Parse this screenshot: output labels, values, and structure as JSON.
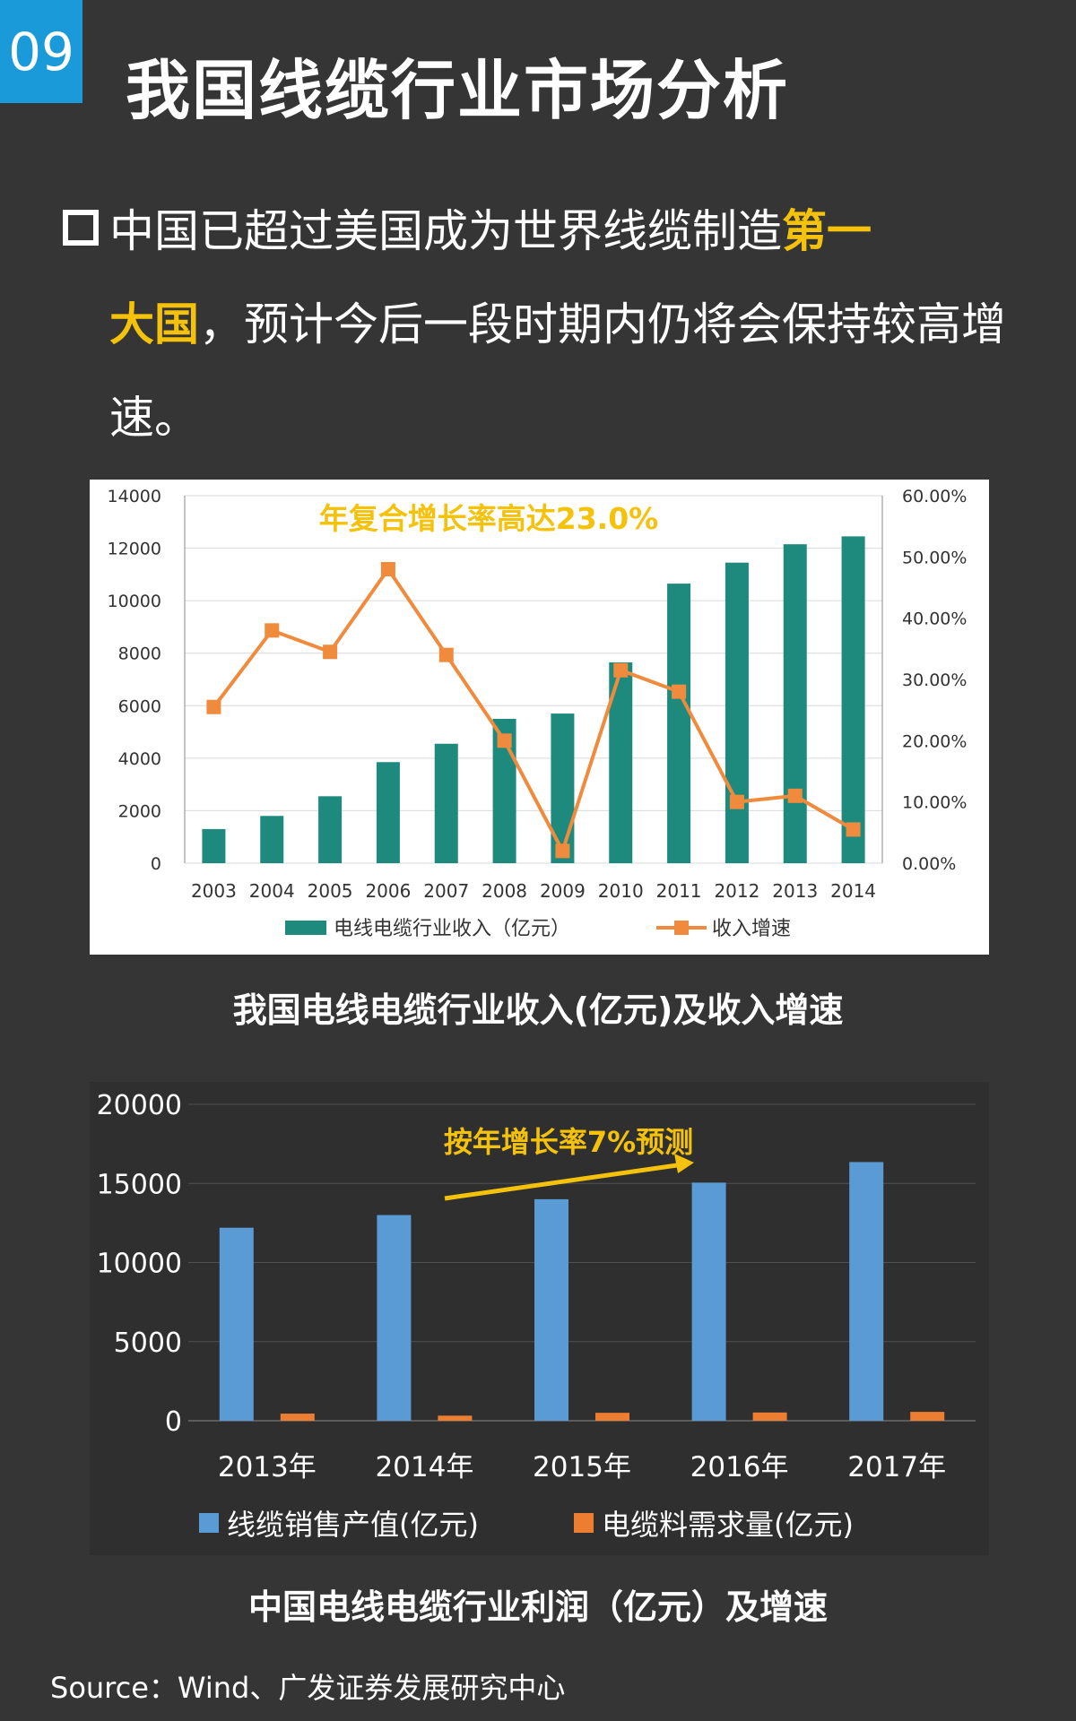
{
  "header": {
    "badge": "09",
    "title": "我国线缆行业市场分析"
  },
  "intro": {
    "part1": "中国已超过美国成为世界线缆制造",
    "highlight1": "第一",
    "highlight2": "大国",
    "part2": "，预计今后一段时期内仍将会保持较高增速。"
  },
  "captions": {
    "chart1": "我国电线电缆行业收入(亿元)及收入增速",
    "chart2": "中国电线电缆行业利润（亿元）及增速"
  },
  "source": "Source：Wind、广发证券发展研究中心",
  "colors": {
    "accent": "#f4c10b",
    "teal": "#1e8a7d",
    "orange": "#f08a3c",
    "blue": "#5b9bd5",
    "orange2": "#ed7d31"
  },
  "chart_data": [
    {
      "type": "bar",
      "categories": [
        "2003",
        "2004",
        "2005",
        "2006",
        "2007",
        "2008",
        "2009",
        "2010",
        "2011",
        "2012",
        "2013",
        "2014"
      ],
      "series": [
        {
          "name": "电线电缆行业收入（亿元）",
          "type": "bar",
          "axis": "left",
          "values": [
            1300,
            1800,
            2550,
            3850,
            4550,
            5500,
            5700,
            7650,
            10650,
            11450,
            12150,
            12450
          ]
        },
        {
          "name": "收入增速",
          "type": "line",
          "axis": "right",
          "values": [
            25.5,
            38.0,
            34.5,
            48.0,
            34.0,
            20.0,
            2.0,
            31.5,
            28.0,
            10.0,
            11.0,
            5.5
          ]
        }
      ],
      "ylim": [
        0,
        14000
      ],
      "yticks": [
        "0",
        "2000",
        "4000",
        "6000",
        "8000",
        "10000",
        "12000",
        "14000"
      ],
      "y2lim": [
        0,
        60
      ],
      "y2ticks": [
        "0.00%",
        "10.00%",
        "20.00%",
        "30.00%",
        "40.00%",
        "50.00%",
        "60.00%"
      ],
      "annotation": "年复合增长率高达23.0%",
      "grid": "horizontal",
      "legend": "bottom"
    },
    {
      "type": "bar",
      "categories": [
        "2013年",
        "2014年",
        "2015年",
        "2016年",
        "2017年"
      ],
      "series": [
        {
          "name": "线缆销售产值(亿元)",
          "values": [
            12200,
            13000,
            14000,
            15050,
            16350
          ]
        },
        {
          "name": "电缆料需求量(亿元)",
          "values": [
            450,
            320,
            500,
            520,
            560
          ]
        }
      ],
      "ylim": [
        0,
        20000
      ],
      "yticks": [
        "0",
        "5000",
        "10000",
        "15000",
        "20000"
      ],
      "annotation": "按年增长率7%预测",
      "grid": "horizontal",
      "legend": "bottom"
    }
  ]
}
